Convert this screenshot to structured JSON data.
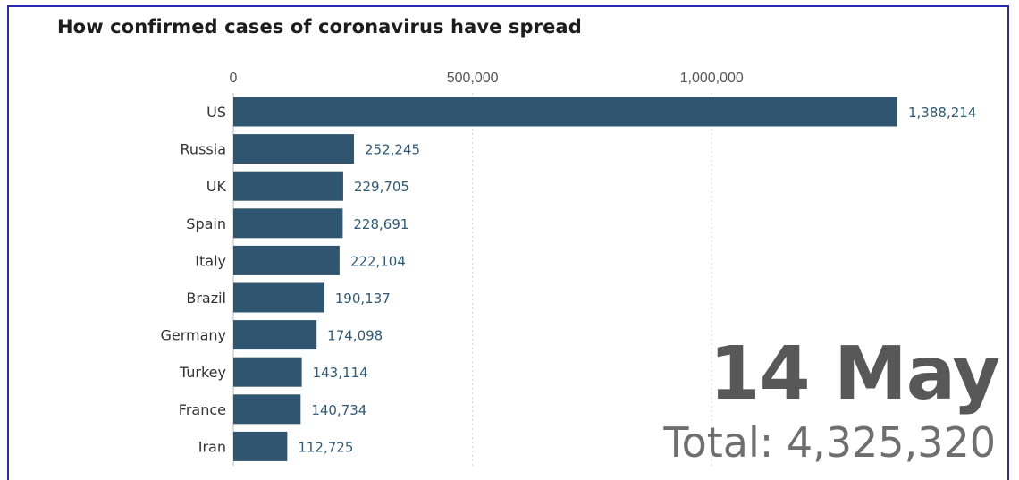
{
  "chart_data": {
    "type": "bar",
    "orientation": "horizontal",
    "title": "How confirmed cases of coronavirus have spread",
    "categories": [
      "US",
      "Russia",
      "UK",
      "Spain",
      "Italy",
      "Brazil",
      "Germany",
      "Turkey",
      "France",
      "Iran"
    ],
    "values": [
      1388214,
      252245,
      229705,
      228691,
      222104,
      190137,
      174098,
      143114,
      140734,
      112725
    ],
    "value_labels": [
      "1,388,214",
      "252,245",
      "229,705",
      "228,691",
      "222,104",
      "190,137",
      "174,098",
      "143,114",
      "140,734",
      "112,725"
    ],
    "x_ticks": [
      0,
      500000,
      1000000
    ],
    "x_tick_labels": [
      "0",
      "500,000",
      "1,000,000"
    ],
    "xlim": [
      0,
      1388214
    ],
    "axis_position": "top",
    "grid": true,
    "bar_color": "#2f5570",
    "value_label_color": "#2e5b7a",
    "date": "14 May",
    "total": "Total: 4,325,320"
  }
}
